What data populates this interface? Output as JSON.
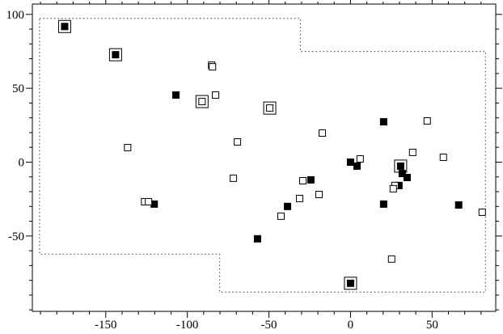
{
  "chart_data": {
    "type": "scatter",
    "xlim": [
      -195,
      89
    ],
    "ylim": [
      -101,
      107
    ],
    "xticks": [
      -150,
      -100,
      -50,
      0,
      50
    ],
    "yticks": [
      -50,
      0,
      50,
      100
    ],
    "xminorticks": [
      -190,
      -180,
      -170,
      -160,
      -140,
      -130,
      -120,
      -110,
      -90,
      -80,
      -70,
      -60,
      -40,
      -30,
      -20,
      -10,
      10,
      20,
      30,
      40,
      60,
      70,
      80
    ],
    "yminorticks": [
      -100,
      -90,
      -80,
      -70,
      -60,
      -40,
      -30,
      -20,
      -10,
      10,
      20,
      30,
      40,
      60,
      70,
      80,
      90
    ],
    "boundary": {
      "x": [
        -190.6,
        -30.7,
        -30.7,
        82.7,
        82.7,
        -80.2,
        -80.2,
        -190.6,
        -190.6
      ],
      "y": [
        97.3,
        97.3,
        74.9,
        74.9,
        -88,
        -88,
        -62.3,
        -62.3,
        97.3
      ]
    },
    "series": [
      {
        "marker": "filled",
        "color": "#000000",
        "x": [
          -175.2,
          -144,
          -107,
          -120.3,
          -57,
          -38.6,
          -24.3,
          0,
          4,
          20.3,
          20.3,
          30.7,
          31.7,
          34.7,
          29.7,
          66.3,
          0
        ],
        "y": [
          91.8,
          72.7,
          45.4,
          -28.4,
          -51.9,
          -30,
          -12,
          0,
          -2.7,
          27.3,
          -28.4,
          -2.7,
          -7.7,
          -10.4,
          -15.8,
          -29,
          -82
        ]
      },
      {
        "marker": "open",
        "color": "#000000",
        "x": [
          -85.1,
          -84.6,
          -82.7,
          -91,
          -49.5,
          -136.6,
          -69.3,
          -17.3,
          47,
          38.1,
          56.9,
          5.9,
          -71.8,
          -29.2,
          -19.3,
          -31.2,
          -42.6,
          -126.2,
          -123.8,
          27.2,
          26.2,
          80.7,
          25.2
        ],
        "y": [
          65.6,
          64.5,
          45.4,
          41,
          36.6,
          9.8,
          13.7,
          19.7,
          27.9,
          6.6,
          3.3,
          2.2,
          -10.9,
          -12.6,
          -21.9,
          -24.6,
          -36.6,
          -26.8,
          -26.8,
          -15.8,
          -18,
          -33.9,
          -65.6
        ]
      },
      {
        "marker": "boxed",
        "color": "#000000",
        "x": [
          -175.2,
          -144,
          -91,
          -49.5,
          30.7,
          0
        ],
        "y": [
          91.8,
          72.7,
          41,
          36.6,
          -2.7,
          -82
        ]
      }
    ]
  }
}
